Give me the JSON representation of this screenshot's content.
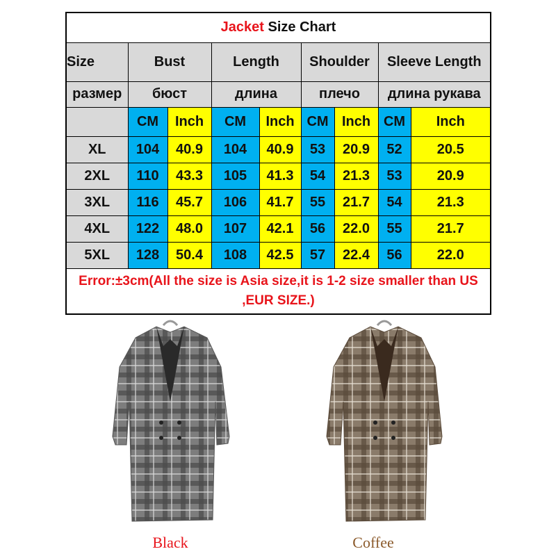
{
  "header": {
    "title_highlight": "Jacket",
    "title_rest": "Size Chart"
  },
  "table": {
    "columns": [
      "Size",
      "Bust",
      "Length",
      "Shoulder",
      "Sleeve Length"
    ],
    "columns_ru": [
      "размер",
      "бюст",
      "длина",
      "плечо",
      "длина рукава"
    ],
    "units": [
      "CM",
      "Inch"
    ],
    "rows": [
      [
        "XL",
        "104",
        "40.9",
        "104",
        "40.9",
        "53",
        "20.9",
        "52",
        "20.5"
      ],
      [
        "2XL",
        "110",
        "43.3",
        "105",
        "41.3",
        "54",
        "21.3",
        "53",
        "20.9"
      ],
      [
        "3XL",
        "116",
        "45.7",
        "106",
        "41.7",
        "55",
        "21.7",
        "54",
        "21.3"
      ],
      [
        "4XL",
        "122",
        "48.0",
        "107",
        "42.1",
        "56",
        "22.0",
        "55",
        "21.7"
      ],
      [
        "5XL",
        "128",
        "50.4",
        "108",
        "42.5",
        "57",
        "22.4",
        "56",
        "22.0"
      ]
    ]
  },
  "note": "Error:±3cm(All the size is Asia size,it is 1-2 size smaller than US ,EUR SIZE.)",
  "products": [
    {
      "label": "Black"
    },
    {
      "label": "Coffee"
    }
  ]
}
